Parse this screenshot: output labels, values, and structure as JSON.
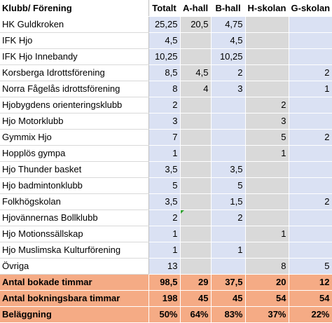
{
  "header": {
    "club": "Klubb/ Förening",
    "totalt": "Totalt",
    "ahall": "A-hall",
    "bhall": "B-hall",
    "hskolan": "H-skolan",
    "gskolan": "G-skolan"
  },
  "rows": [
    {
      "club": "HK Guldkroken",
      "totalt": "25,25",
      "ahall": "20,5",
      "bhall": "4,75",
      "hskolan": "",
      "gskolan": ""
    },
    {
      "club": "IFK Hjo",
      "totalt": "4,5",
      "ahall": "",
      "bhall": "4,5",
      "hskolan": "",
      "gskolan": ""
    },
    {
      "club": "IFK Hjo Innebandy",
      "totalt": "10,25",
      "ahall": "",
      "bhall": "10,25",
      "hskolan": "",
      "gskolan": ""
    },
    {
      "club": "Korsberga Idrottsförening",
      "totalt": "8,5",
      "ahall": "4,5",
      "bhall": "2",
      "hskolan": "",
      "gskolan": "2"
    },
    {
      "club": "Norra Fågelås idrottsförening",
      "totalt": "8",
      "ahall": "4",
      "bhall": "3",
      "hskolan": "",
      "gskolan": "1"
    },
    {
      "club": "Hjobygdens orienteringsklubb",
      "totalt": "2",
      "ahall": "",
      "bhall": "",
      "hskolan": "2",
      "gskolan": ""
    },
    {
      "club": "Hjo Motorklubb",
      "totalt": "3",
      "ahall": "",
      "bhall": "",
      "hskolan": "3",
      "gskolan": ""
    },
    {
      "club": "Gymmix Hjo",
      "totalt": "7",
      "ahall": "",
      "bhall": "",
      "hskolan": "5",
      "gskolan": "2"
    },
    {
      "club": "Hopplös gympa",
      "totalt": "1",
      "ahall": "",
      "bhall": "",
      "hskolan": "1",
      "gskolan": ""
    },
    {
      "club": "Hjo Thunder basket",
      "totalt": "3,5",
      "ahall": "",
      "bhall": "3,5",
      "hskolan": "",
      "gskolan": ""
    },
    {
      "club": "Hjo badmintonklubb",
      "totalt": "5",
      "ahall": "",
      "bhall": "5",
      "hskolan": "",
      "gskolan": ""
    },
    {
      "club": "Folkhögskolan",
      "totalt": "3,5",
      "ahall": "",
      "bhall": "1,5",
      "hskolan": "",
      "gskolan": "2"
    },
    {
      "club": "Hjovännernas Bollklubb",
      "totalt": "2",
      "ahall": "",
      "bhall": "2",
      "hskolan": "",
      "gskolan": ""
    },
    {
      "club": "Hjo Motionssällskap",
      "totalt": "1",
      "ahall": "",
      "bhall": "",
      "hskolan": "1",
      "gskolan": ""
    },
    {
      "club": "Hjo Muslimska Kulturförening",
      "totalt": "1",
      "ahall": "",
      "bhall": "1",
      "hskolan": "",
      "gskolan": ""
    },
    {
      "club": "Övriga",
      "totalt": "13",
      "ahall": "",
      "bhall": "",
      "hskolan": "8",
      "gskolan": "5"
    }
  ],
  "summary": [
    {
      "club": "Antal bokade timmar",
      "totalt": "98,5",
      "ahall": "29",
      "bhall": "37,5",
      "hskolan": "20",
      "gskolan": "12"
    },
    {
      "club": "Antal bokningsbara timmar",
      "totalt": "198",
      "ahall": "45",
      "bhall": "45",
      "hskolan": "54",
      "gskolan": "54"
    },
    {
      "club": "Beläggning",
      "totalt": "50%",
      "ahall": "64%",
      "bhall": "83%",
      "hskolan": "37%",
      "gskolan": "22%"
    }
  ]
}
